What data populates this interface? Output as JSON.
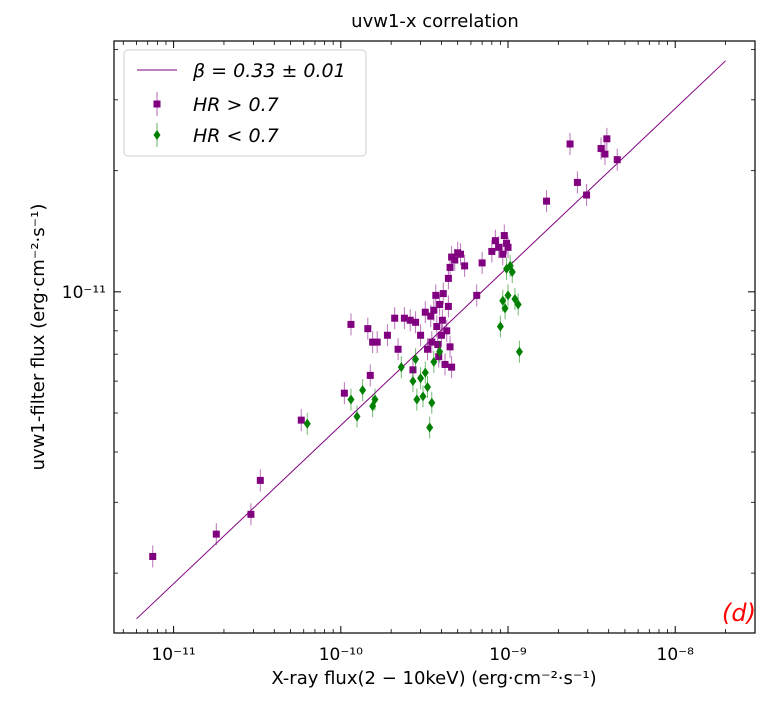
{
  "chart_data": {
    "type": "scatter",
    "title": "uvw1-x correlation",
    "xlabel": "X-ray flux(2 − 10keV) (erg·cm⁻²·s⁻¹)",
    "ylabel": "uvw1-filter flux (erg·cm⁻²·s⁻¹)",
    "x_scale": "log",
    "y_scale": "log",
    "xlim": [
      4.4e-12,
      3e-08
    ],
    "ylim": [
      1.42e-12,
      4.2e-11
    ],
    "x_tick_labels": [
      "10⁻¹¹",
      "10⁻¹⁰",
      "10⁻⁹",
      "10⁻⁸"
    ],
    "x_tick_values": [
      1e-11,
      1e-10,
      1e-09,
      1e-08
    ],
    "y_tick_labels": [
      "10⁻¹¹"
    ],
    "y_tick_values": [
      1e-11
    ],
    "panel_label": "(d)",
    "colors": {
      "fit": "#800080",
      "hr_high": "#800080",
      "hr_low": "#008000",
      "panel_label": "#ff0000"
    },
    "legend": {
      "position": "upper-left",
      "entries": [
        "β = 0.33 ± 0.01",
        "HR > 0.7",
        "HR < 0.7"
      ]
    },
    "fit_line": {
      "name": "β = 0.33 ± 0.01",
      "x": [
        6e-12,
        2e-08
      ],
      "y": [
        1.54e-12,
        3.75e-11
      ]
    },
    "series": [
      {
        "name": "HR > 0.7",
        "marker": "square",
        "points": [
          [
            7.5e-12,
            2.2e-12
          ],
          [
            1.8e-11,
            2.5e-12
          ],
          [
            2.9e-11,
            2.8e-12
          ],
          [
            3.3e-11,
            3.4e-12
          ],
          [
            5.8e-11,
            4.8e-12
          ],
          [
            1.05e-10,
            5.6e-12
          ],
          [
            1.15e-10,
            8.3e-12
          ],
          [
            1.45e-10,
            8.1e-12
          ],
          [
            1.5e-10,
            6.2e-12
          ],
          [
            1.55e-10,
            7.5e-12
          ],
          [
            1.65e-10,
            7.5e-12
          ],
          [
            1.9e-10,
            7.8e-12
          ],
          [
            2.1e-10,
            8.6e-12
          ],
          [
            2.2e-10,
            7.2e-12
          ],
          [
            2.4e-10,
            8.6e-12
          ],
          [
            2.6e-10,
            8.5e-12
          ],
          [
            2.7e-10,
            6.4e-12
          ],
          [
            2.8e-10,
            8.4e-12
          ],
          [
            3e-10,
            7.8e-12
          ],
          [
            3.2e-10,
            8.9e-12
          ],
          [
            3.3e-10,
            7.2e-12
          ],
          [
            3.45e-10,
            8.7e-12
          ],
          [
            3.5e-10,
            7.5e-12
          ],
          [
            3.6e-10,
            9e-12
          ],
          [
            3.7e-10,
            9.8e-12
          ],
          [
            3.75e-10,
            8.2e-12
          ],
          [
            3.8e-10,
            7.4e-12
          ],
          [
            3.85e-10,
            6.9e-12
          ],
          [
            3.9e-10,
            9.3e-12
          ],
          [
            4e-10,
            7.8e-12
          ],
          [
            4.05e-10,
            8.5e-12
          ],
          [
            4.1e-10,
            9.9e-12
          ],
          [
            4.2e-10,
            6.6e-12
          ],
          [
            4.3e-10,
            8e-12
          ],
          [
            4.4e-10,
            9.2e-12
          ],
          [
            4.5e-10,
            7.3e-12
          ],
          [
            4.6e-10,
            6.5e-12
          ],
          [
            4.4e-10,
            1.08e-11
          ],
          [
            4.5e-10,
            1.15e-11
          ],
          [
            4.6e-10,
            1.22e-11
          ],
          [
            4.8e-10,
            1.2e-11
          ],
          [
            5e-10,
            1.25e-11
          ],
          [
            5.2e-10,
            1.24e-11
          ],
          [
            5.5e-10,
            1.16e-11
          ],
          [
            6.5e-10,
            9.8e-12
          ],
          [
            7e-10,
            1.18e-11
          ],
          [
            8e-10,
            1.26e-11
          ],
          [
            8.4e-10,
            1.34e-11
          ],
          [
            8.8e-10,
            1.29e-11
          ],
          [
            9.3e-10,
            1.24e-11
          ],
          [
            9.5e-10,
            1.38e-11
          ],
          [
            9.8e-10,
            1.32e-11
          ],
          [
            1e-09,
            1.29e-11
          ],
          [
            1.7e-09,
            1.68e-11
          ],
          [
            2.35e-09,
            2.33e-11
          ],
          [
            2.6e-09,
            1.87e-11
          ],
          [
            2.95e-09,
            1.74e-11
          ],
          [
            3.6e-09,
            2.27e-11
          ],
          [
            3.8e-09,
            2.2e-11
          ],
          [
            3.9e-09,
            2.4e-11
          ],
          [
            4.5e-09,
            2.13e-11
          ]
        ]
      },
      {
        "name": "HR < 0.7",
        "marker": "diamond",
        "points": [
          [
            6.3e-11,
            4.7e-12
          ],
          [
            1.15e-10,
            5.4e-12
          ],
          [
            1.25e-10,
            4.9e-12
          ],
          [
            1.35e-10,
            5.7e-12
          ],
          [
            1.55e-10,
            5.2e-12
          ],
          [
            1.6e-10,
            5.4e-12
          ],
          [
            2.3e-10,
            6.5e-12
          ],
          [
            2.7e-10,
            6e-12
          ],
          [
            2.8e-10,
            6.8e-12
          ],
          [
            2.85e-10,
            5.4e-12
          ],
          [
            3e-10,
            6.1e-12
          ],
          [
            3.1e-10,
            5.5e-12
          ],
          [
            3.2e-10,
            6.3e-12
          ],
          [
            3.3e-10,
            5.8e-12
          ],
          [
            3.4e-10,
            4.6e-12
          ],
          [
            3.5e-10,
            5.3e-12
          ],
          [
            3.6e-10,
            6.7e-12
          ],
          [
            3.9e-10,
            7.1e-12
          ],
          [
            9e-10,
            8.2e-12
          ],
          [
            9.3e-10,
            9.5e-12
          ],
          [
            9.6e-10,
            9.1e-12
          ],
          [
            9.8e-10,
            1.14e-11
          ],
          [
            1e-09,
            9.8e-12
          ],
          [
            1.03e-09,
            1.16e-11
          ],
          [
            1.06e-09,
            1.12e-11
          ],
          [
            1.1e-09,
            9.6e-12
          ],
          [
            1.15e-09,
            9.3e-12
          ],
          [
            1.17e-09,
            7.1e-12
          ]
        ]
      }
    ]
  }
}
